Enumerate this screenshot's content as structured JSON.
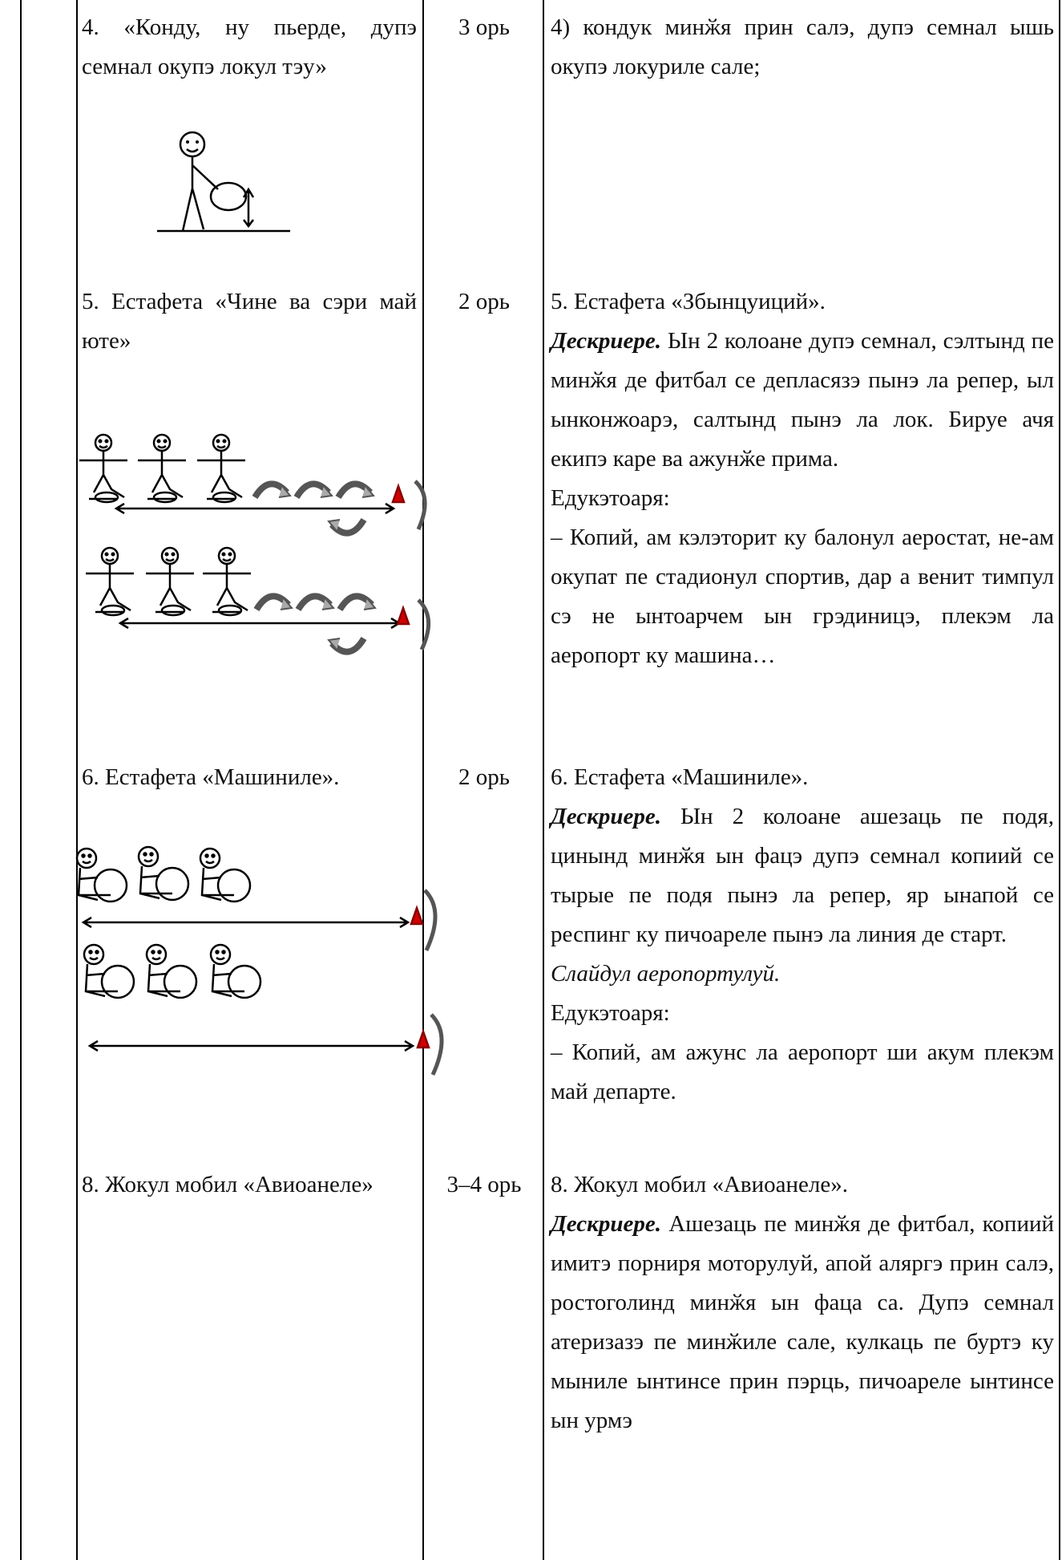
{
  "table": {
    "rows": [
      {
        "left": "4. «Конду, ну пьерде, дупэ семнал окупэ локул тэу»",
        "hours": "3 орь",
        "right": [
          {
            "text": "4) кондук минӂя прин салэ, дупэ семнал ышь окупэ локуриле сале;"
          }
        ]
      },
      {
        "left": "5. Естафета «Чине ва сэри май юте»",
        "hours": "2 орь",
        "right": [
          {
            "text": "5. Естафета «Збынцуиций»."
          },
          {
            "label": "Дескриере.",
            "text": "Ын 2 колоане дупэ семнал, сэлтынд пе минӂя де фитбал се депласязэ пынэ ла репер, ыл ынконжоарэ, салтынд пынэ ла лок. Бируе ачя екипэ каре ва ажунӂе прима."
          },
          {
            "text": "Едукэтоаря:"
          },
          {
            "text": "– Копий, ам кэлэторит ку балонул аеростат, не-ам окупат пе стадионул спортив, дар а венит тимпул сэ не ынтоарчем ын грэдиницэ, плекэм ла аеропорт ку машина…"
          }
        ]
      },
      {
        "left": "6. Естафета «Машиниле».",
        "hours": "2 орь",
        "right": [
          {
            "text": "6. Естафета «Машиниле»."
          },
          {
            "label": "Дескриере.",
            "text": "Ын 2 колоане ашезаць пе подя, цинынд минӂя ын фацэ дупэ семнал копиий се тырые пе подя пынэ ла репер, яр ынапой се респинг ку пичоареле пынэ ла линия де старт."
          },
          {
            "text": "Слайдул аеропортулуй.",
            "style": "italic"
          },
          {
            "text": "Едукэтоаря:"
          },
          {
            "text": "– Копий, ам ажунс ла аеропорт ши акум плекэм май департе."
          }
        ]
      },
      {
        "left": "8. Жокул мобил «Авиоанеле»",
        "hours": "3–4 орь",
        "right": [
          {
            "text": "8. Жокул мобил «Авиоанеле»."
          },
          {
            "label": "Дескриере.",
            "text": "Ашезаць пе минӂя де фитбал, копиий имитэ порниря моторулуй, апой аляргэ прин салэ, ростоголинд минӂя ын фаца са. Дупэ семнал атеризазэ пе минӂиле сале, кулкаць пе буртэ ку мыниле ынтинсе прин пэрць, пичоареле ынтинсе ын урмэ"
          }
        ]
      }
    ]
  }
}
